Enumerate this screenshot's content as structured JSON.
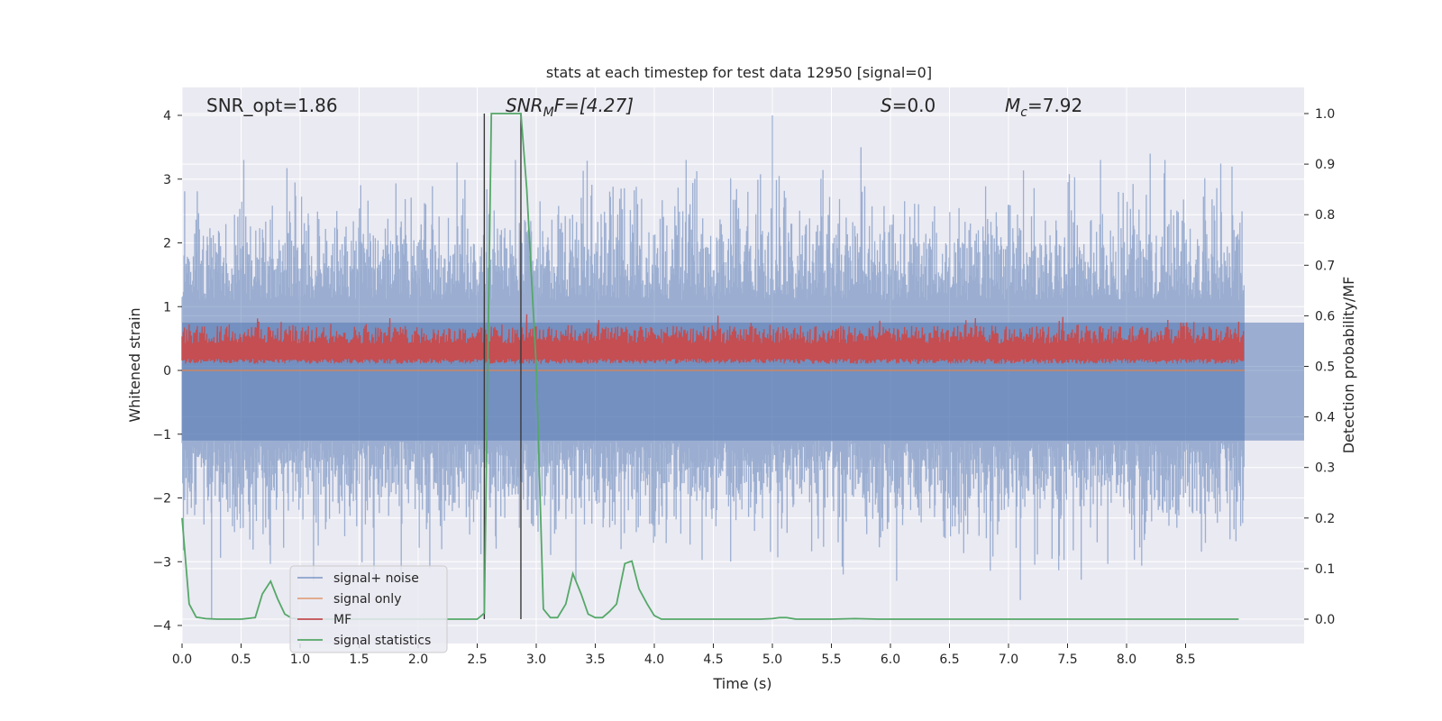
{
  "chart_data": {
    "type": "line",
    "title": "stats at each timestep for test data 12950 [signal=0]",
    "xlabel": "Time (s)",
    "ylabel_left": "Whitened strain",
    "ylabel_right": "Detection probability/MF",
    "xlim": [
      0.0,
      9.0
    ],
    "ylim_left": [
      -4.3,
      4.4
    ],
    "ylim_right": [
      -0.047,
      1.035
    ],
    "x_ticks": [
      0.0,
      0.5,
      1.0,
      1.5,
      2.0,
      2.5,
      3.0,
      3.5,
      4.0,
      4.5,
      5.0,
      5.5,
      6.0,
      6.5,
      7.0,
      7.5,
      8.0,
      8.5
    ],
    "x_tick_labels": [
      "0.0",
      "0.5",
      "1.0",
      "1.5",
      "2.0",
      "2.5",
      "3.0",
      "3.5",
      "4.0",
      "4.5",
      "5.0",
      "5.5",
      "6.0",
      "6.5",
      "7.0",
      "7.5",
      "8.0",
      "8.5"
    ],
    "y_left_ticks": [
      -4,
      -3,
      -2,
      -1,
      0,
      1,
      2,
      3,
      4
    ],
    "y_left_tick_labels": [
      "−4",
      "−3",
      "−2",
      "−1",
      "0",
      "1",
      "2",
      "3",
      "4"
    ],
    "y_right_ticks": [
      0.0,
      0.1,
      0.2,
      0.3,
      0.4,
      0.5,
      0.6,
      0.7,
      0.8,
      0.9,
      1.0
    ],
    "y_right_tick_labels": [
      "0.0",
      "0.1",
      "0.2",
      "0.3",
      "0.4",
      "0.5",
      "0.6",
      "0.7",
      "0.8",
      "0.9",
      "1.0"
    ],
    "grid": true,
    "annotations": {
      "snr_opt": "SNR_opt=1.86",
      "snr_mf": "SNR",
      "snr_mf_sub": "M",
      "snr_mf_rest": "F=[4.27]",
      "s_value_sym": "S",
      "s_value_rest": "=0.0",
      "mc_sym": "M",
      "mc_sub": "c",
      "mc_rest": "=7.92"
    },
    "vertical_lines_x": [
      2.56,
      2.87
    ],
    "legend": {
      "placement": "lower-left",
      "entries": [
        "signal+ noise",
        "signal only",
        "MF",
        "signal statistics"
      ]
    },
    "colors": {
      "background": "#eaeaf2",
      "grid": "#ffffff",
      "signal_noise": "#4c72b0",
      "signal_only": "#dd8452",
      "mf": "#c44e52",
      "signal_statistics": "#55a868",
      "vline": "#3a3a3a"
    },
    "series": [
      {
        "name": "signal+ noise",
        "axis": "left",
        "description_range": [
          -3.9,
          4.0
        ],
        "peak_highlights": [
          {
            "x": 0.25,
            "y": -3.9
          },
          {
            "x": 5.0,
            "y": 4.0
          },
          {
            "x": 7.1,
            "y": -3.6
          },
          {
            "x": 5.6,
            "y": -3.2
          },
          {
            "x": 5.75,
            "y": 3.5
          },
          {
            "x": 8.2,
            "y": 3.4
          }
        ]
      },
      {
        "name": "signal only",
        "axis": "left",
        "x": [
          0.0,
          9.0
        ],
        "y": [
          0.0,
          0.0
        ]
      },
      {
        "name": "MF",
        "axis": "right",
        "level_range": [
          0.505,
          0.6
        ]
      },
      {
        "name": "signal statistics",
        "axis": "right",
        "x": [
          0.0,
          0.06,
          0.12,
          0.2,
          0.3,
          0.5,
          0.62,
          0.68,
          0.75,
          0.81,
          0.87,
          0.93,
          1.0,
          1.5,
          2.0,
          2.5,
          2.56,
          2.62,
          2.7,
          2.8,
          2.87,
          2.92,
          3.0,
          3.06,
          3.12,
          3.18,
          3.25,
          3.31,
          3.38,
          3.44,
          3.5,
          3.56,
          3.62,
          3.68,
          3.75,
          3.81,
          3.87,
          3.94,
          4.0,
          4.06,
          4.5,
          4.9,
          5.0,
          5.06,
          5.12,
          5.2,
          5.5,
          5.7,
          5.9,
          6.5,
          7.0,
          8.0,
          8.95
        ],
        "y": [
          0.2,
          0.03,
          0.004,
          0.001,
          0.0,
          0.0,
          0.003,
          0.05,
          0.075,
          0.04,
          0.01,
          0.002,
          0.0,
          0.0,
          0.0,
          0.0,
          0.012,
          1.0,
          1.0,
          1.0,
          1.0,
          0.85,
          0.5,
          0.02,
          0.003,
          0.003,
          0.03,
          0.09,
          0.05,
          0.01,
          0.003,
          0.003,
          0.015,
          0.03,
          0.11,
          0.115,
          0.06,
          0.03,
          0.007,
          0.0,
          0.0,
          0.0,
          0.001,
          0.003,
          0.003,
          0.0,
          0.0,
          0.001,
          0.0,
          0.0,
          0.0,
          0.0,
          0.0
        ]
      }
    ]
  }
}
